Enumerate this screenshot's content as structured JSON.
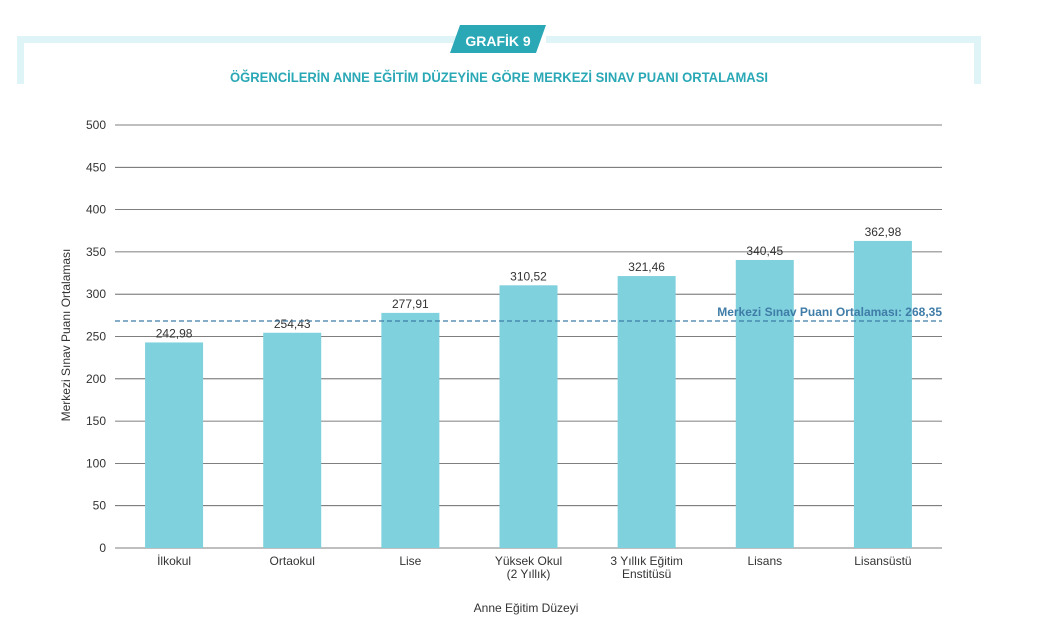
{
  "header": {
    "badge": "GRAFİK 9",
    "title": "ÖĞRENCİLERİN ANNE EĞİTİM DÜZEYİNE GÖRE MERKEZİ SINAV PUANI ORTALAMASI"
  },
  "colors": {
    "frame": "#def4f7",
    "badge_bg": "#2aa8b6",
    "badge_text": "#ffffff",
    "title": "#2aa8b6",
    "bar": "#7fd1dd",
    "reference_line": "#3f7ca7",
    "reference_label": "#3f7ca7",
    "grid": "#555555",
    "text": "#333333"
  },
  "chart_data": {
    "type": "bar",
    "categories": [
      [
        "İlkokul"
      ],
      [
        "Ortaokul"
      ],
      [
        "Lise"
      ],
      [
        "Yüksek Okul",
        "(2 Yıllık)"
      ],
      [
        "3 Yıllık Eğitim",
        "Enstitüsü"
      ],
      [
        "Lisans"
      ],
      [
        "Lisansüstü"
      ]
    ],
    "values": [
      242.98,
      254.43,
      277.91,
      310.52,
      321.46,
      340.45,
      362.98
    ],
    "value_labels": [
      "242,98",
      "254,43",
      "277,91",
      "310,52",
      "321,46",
      "340,45",
      "362,98"
    ],
    "xlabel": "Anne Eğitim Düzeyi",
    "ylabel": "Merkezi Sınav Puanı Ortalaması",
    "ylim": [
      0,
      500
    ],
    "yticks": [
      0,
      50,
      100,
      150,
      200,
      250,
      300,
      350,
      400,
      450,
      500
    ],
    "grid": true,
    "reference_line": {
      "value": 268.35,
      "label": "Merkezi Sınav Puanı Ortalaması: 268,35",
      "style": "dashed"
    }
  }
}
